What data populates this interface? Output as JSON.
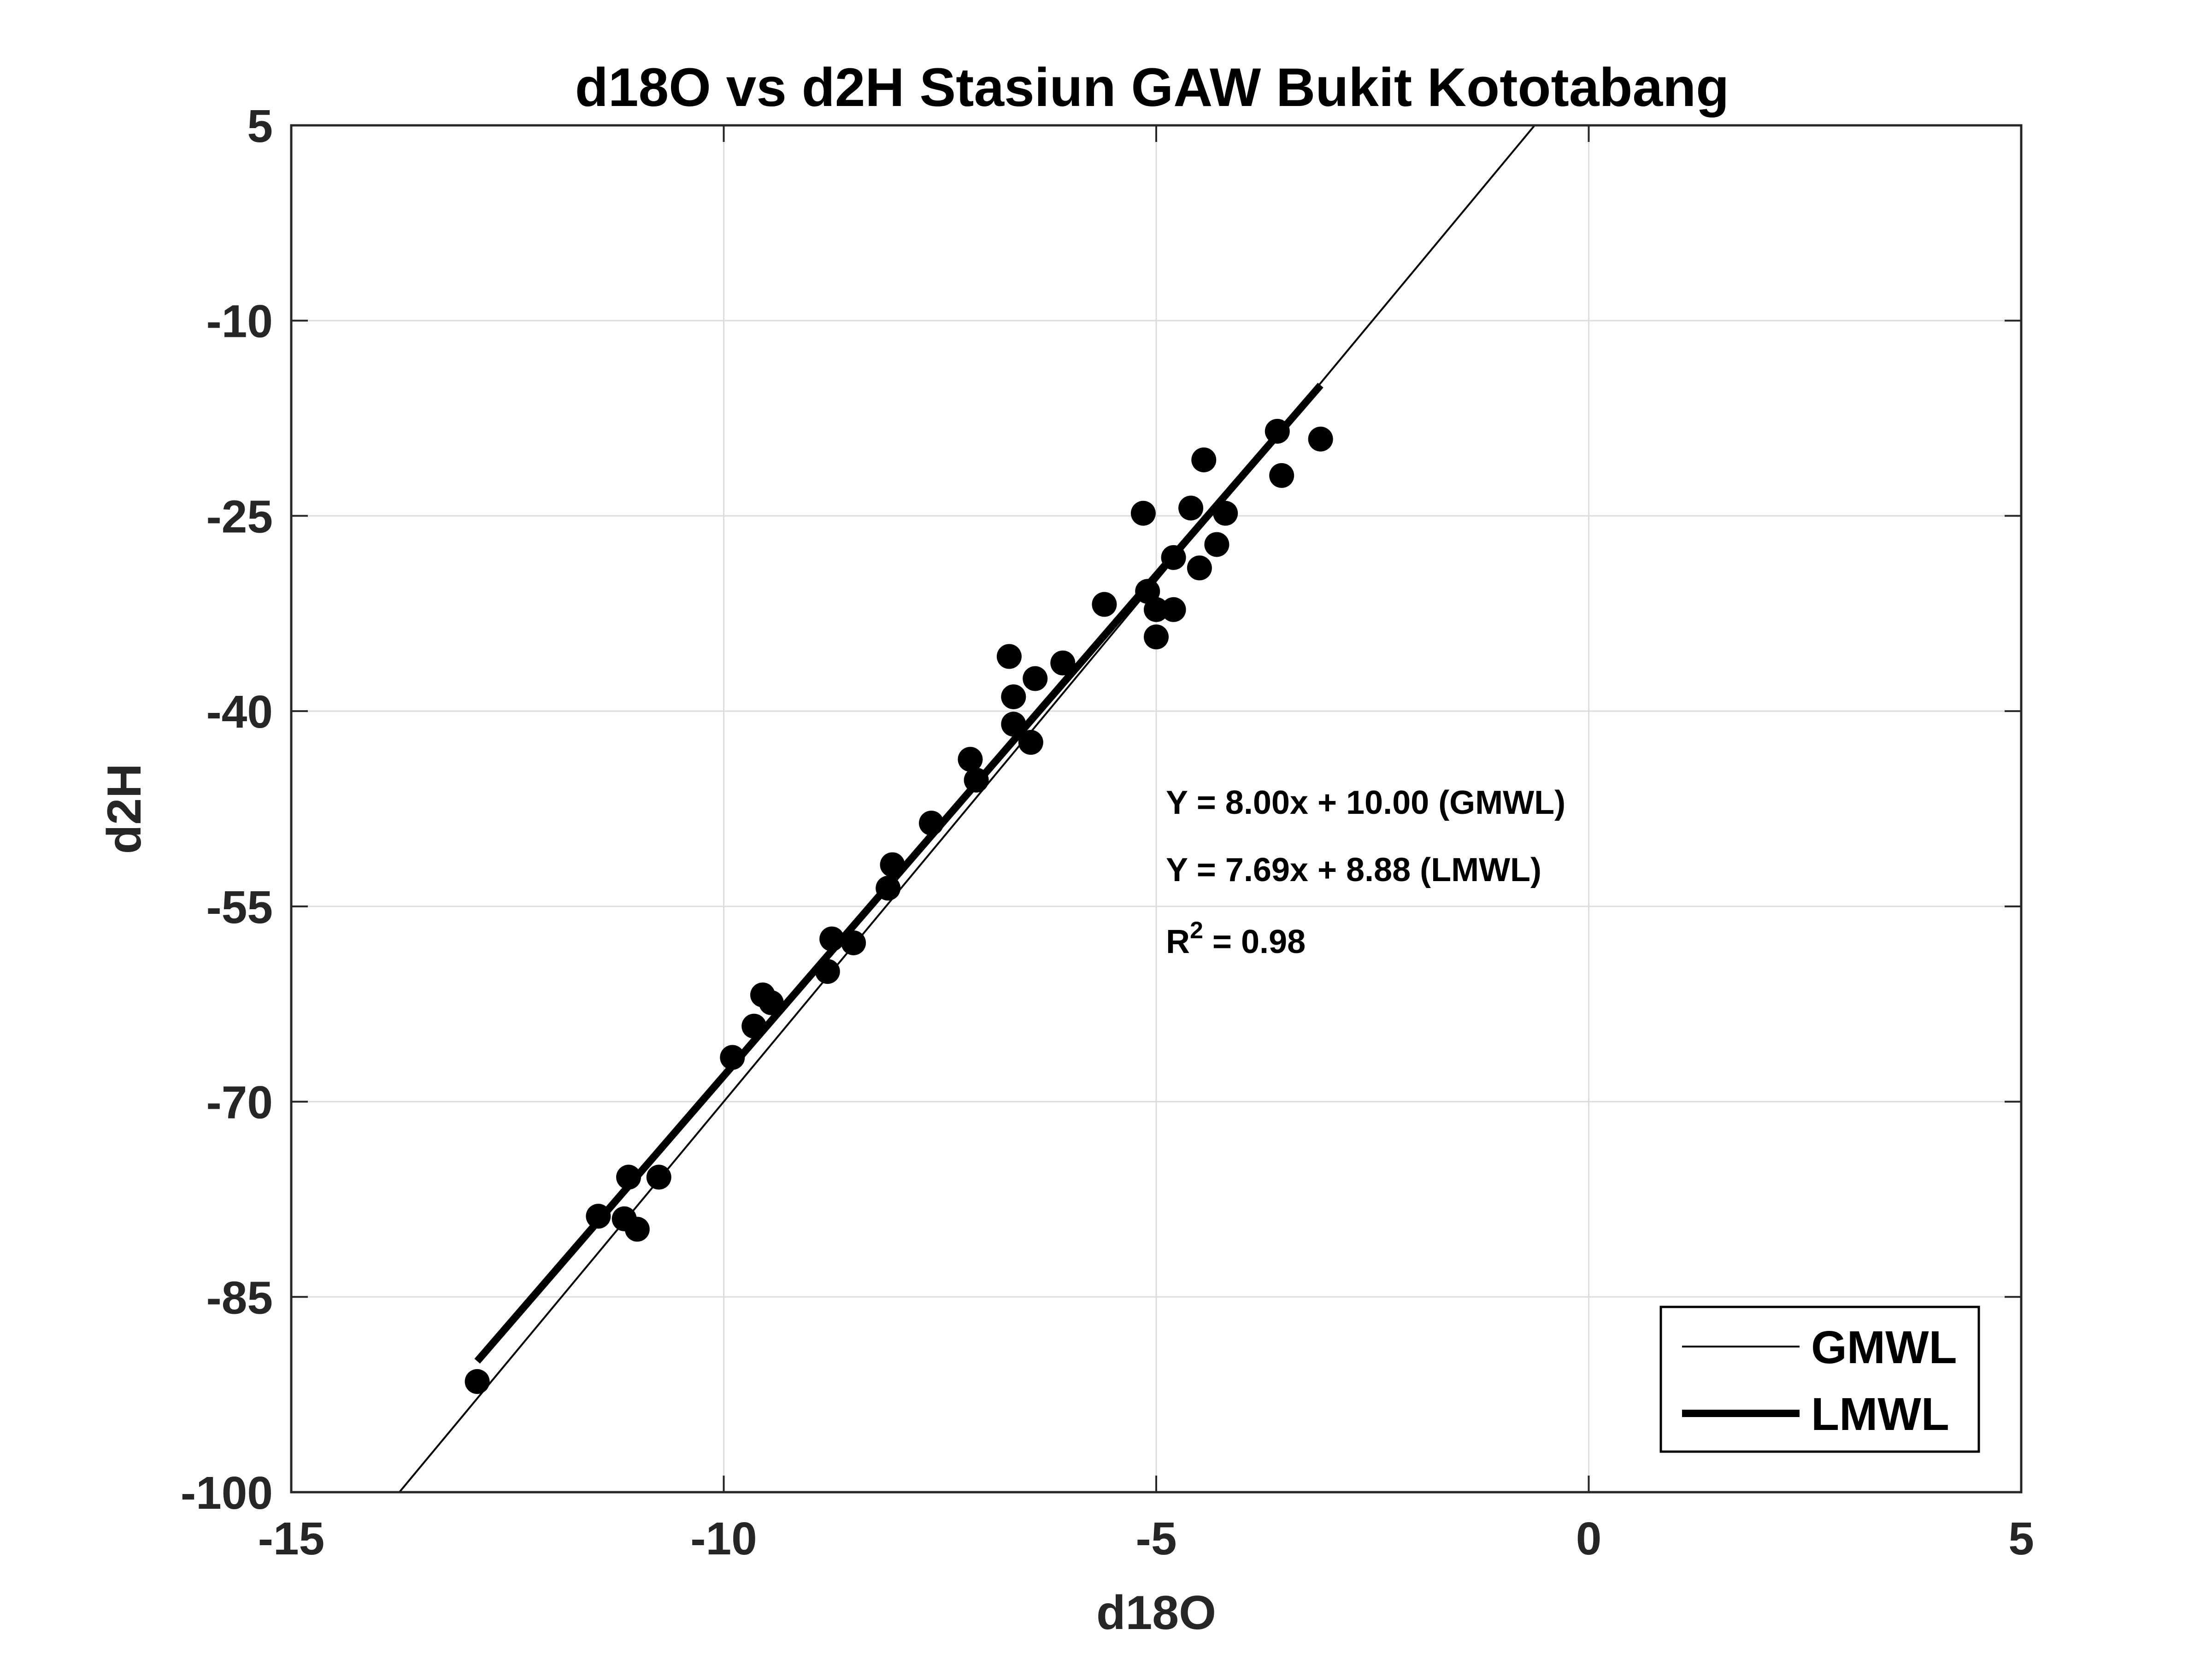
{
  "chart_data": {
    "type": "scatter",
    "title": "d18O vs d2H Stasiun GAW Bukit Kototabang",
    "xlabel": "d18O",
    "ylabel": "d2H",
    "xlim": [
      -15,
      5
    ],
    "ylim": [
      -100,
      5
    ],
    "xticks": [
      -15,
      -10,
      -5,
      0,
      5
    ],
    "yticks": [
      5,
      -10,
      -25,
      -40,
      -55,
      -70,
      -85,
      -100
    ],
    "xtick_labels": [
      "-15",
      "-10",
      "-5",
      "0",
      "5"
    ],
    "ytick_labels": [
      "5",
      "-10",
      "-25",
      "-40",
      "-55",
      "-70",
      "-85",
      "-100"
    ],
    "grid": true,
    "points": {
      "x": [
        -12.85,
        -11.45,
        -11.15,
        -11.1,
        -11.0,
        -10.75,
        -9.9,
        -9.65,
        -9.55,
        -9.45,
        -8.8,
        -8.75,
        -8.5,
        -8.1,
        -8.05,
        -7.6,
        -7.15,
        -7.08,
        -6.7,
        -6.65,
        -6.65,
        -6.45,
        -6.4,
        -6.08,
        -5.6,
        -5.15,
        -5.1,
        -5.0,
        -5.0,
        -4.8,
        -4.8,
        -4.6,
        -4.5,
        -4.45,
        -4.3,
        -4.2,
        -3.6,
        -3.55,
        -3.1
      ],
      "y": [
        -91.5,
        -78.8,
        -79.0,
        -75.8,
        -79.8,
        -75.8,
        -66.6,
        -64.2,
        -61.8,
        -62.4,
        -60.0,
        -57.5,
        -57.8,
        -53.6,
        -51.8,
        -48.6,
        -43.7,
        -45.3,
        -35.8,
        -38.9,
        -41.0,
        -42.4,
        -37.5,
        -36.3,
        -31.8,
        -24.8,
        -30.8,
        -32.2,
        -34.3,
        -28.2,
        -32.2,
        -24.4,
        -29.0,
        -20.7,
        -27.2,
        -24.8,
        -18.5,
        -21.9,
        -19.1
      ]
    },
    "series": [
      {
        "name": "GMWL",
        "equation": "Y = 8.00x + 10.00 (GMWL)",
        "slope": 8.0,
        "intercept": 10.0,
        "x_range": [
          -13.75,
          -0.625
        ],
        "style": "thin"
      },
      {
        "name": "LMWL",
        "equation": "Y = 7.69x + 8.88 (LMWL)",
        "slope": 7.69,
        "intercept": 8.88,
        "x_range": [
          -12.85,
          -3.1
        ],
        "style": "thick"
      }
    ],
    "r2_label": "R",
    "r2_sup": "2",
    "r2_value": " = 0.98",
    "legend": {
      "location": "bottom-right",
      "entries": [
        "GMWL",
        "LMWL"
      ]
    }
  },
  "colors": {
    "line": "#000000",
    "grid": "#dcdcdc",
    "axis": "#262626"
  }
}
